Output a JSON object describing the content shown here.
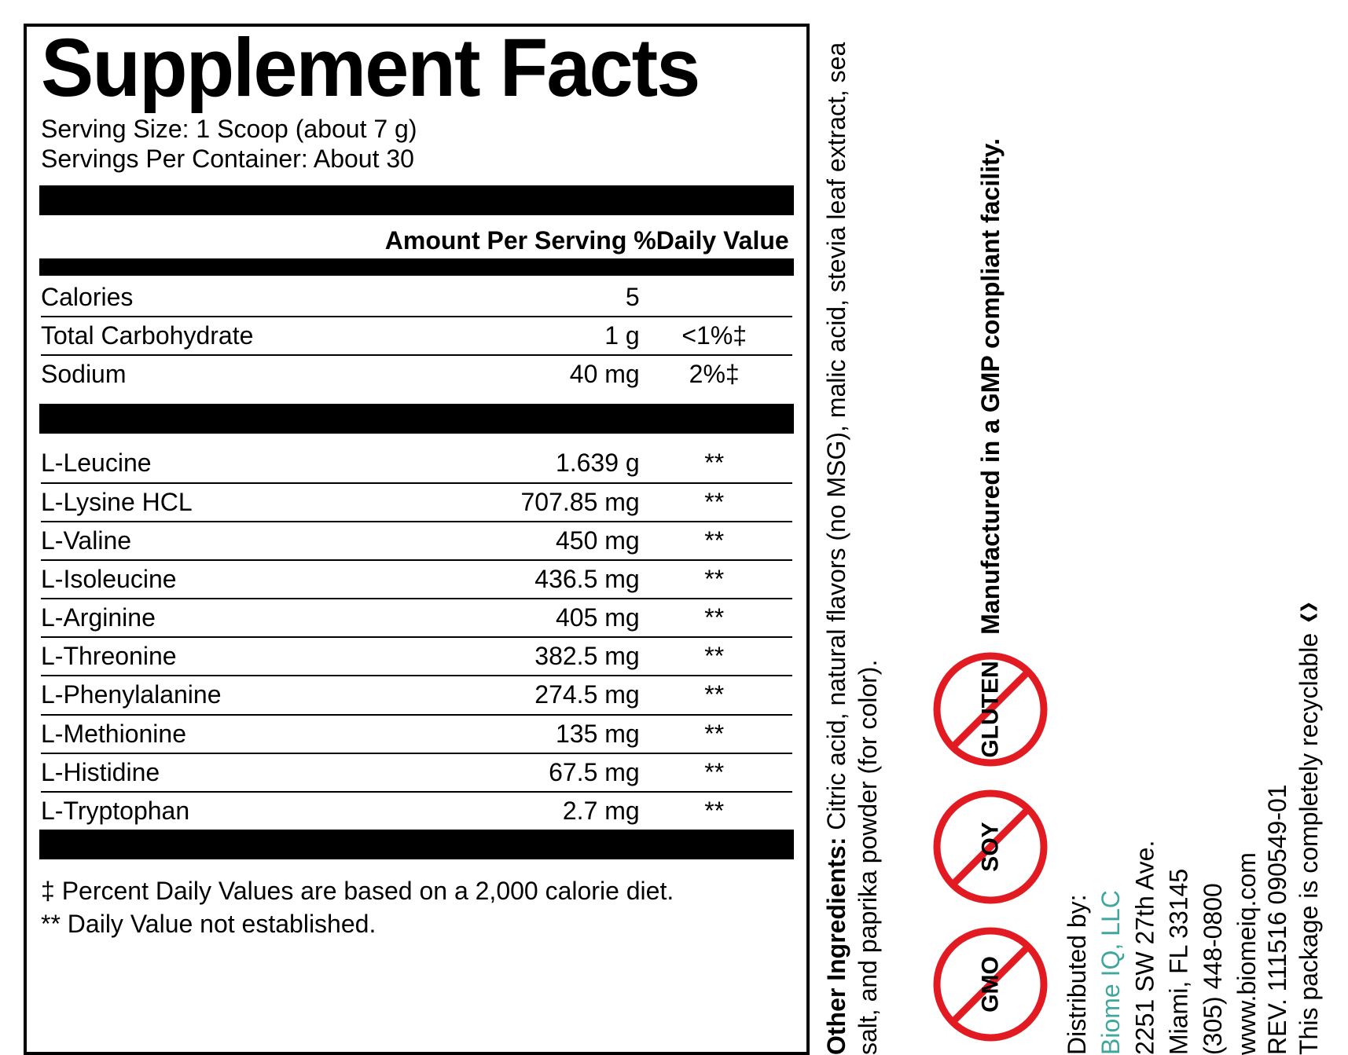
{
  "title": "Supplement Facts",
  "serving_size": "Serving Size: 1 Scoop (about 7 g)",
  "servings_per": "Servings Per Container: About 30",
  "col_head": "Amount Per Serving  %Daily Value",
  "rows_top": [
    {
      "name": "Calories",
      "amt": "5",
      "dv": ""
    },
    {
      "name": "Total Carbohydrate",
      "amt": "1 g",
      "dv": "<1%‡"
    },
    {
      "name": "Sodium",
      "amt": "40 mg",
      "dv": "2%‡"
    }
  ],
  "rows_amino": [
    {
      "name": "L-Leucine",
      "amt": "1.639 g",
      "dv": "**"
    },
    {
      "name": "L-Lysine HCL",
      "amt": "707.85 mg",
      "dv": "**"
    },
    {
      "name": "L-Valine",
      "amt": "450 mg",
      "dv": "**"
    },
    {
      "name": "L-Isoleucine",
      "amt": "436.5 mg",
      "dv": "**"
    },
    {
      "name": "L-Arginine",
      "amt": "405 mg",
      "dv": "**"
    },
    {
      "name": "L-Threonine",
      "amt": "382.5 mg",
      "dv": "**"
    },
    {
      "name": "L-Phenylalanine",
      "amt": "274.5 mg",
      "dv": "**"
    },
    {
      "name": "L-Methionine",
      "amt": "135 mg",
      "dv": "**"
    },
    {
      "name": "L-Histidine",
      "amt": "67.5 mg",
      "dv": "**"
    },
    {
      "name": "L-Tryptophan",
      "amt": "2.7 mg",
      "dv": "**"
    }
  ],
  "note1": "‡ Percent Daily Values are based on a 2,000 calorie diet.",
  "note2": "** Daily Value not established.",
  "other_ing_label": "Other Ingredients:",
  "other_ing_text": " Citric acid, natural flavors (no MSG), malic acid, stevia leaf extract, sea salt, and paprika powder (for color).",
  "gmp_text": "Manufactured in a GMP compliant facility.",
  "badges": [
    "GLUTEN",
    "SOY",
    "GMO"
  ],
  "badge_color": "#e21b23",
  "dist_label": "Distributed by:",
  "dist_company": "Biome IQ, LLC",
  "dist_addr1": "2251 SW 27th Ave.",
  "dist_addr2": "Miami, FL 33145",
  "dist_phone": "(305) 448-0800",
  "dist_web": "www.biomeiq.com",
  "rev": "REV. 111516  090549-01",
  "recyclable": "This package is completely recyclable"
}
